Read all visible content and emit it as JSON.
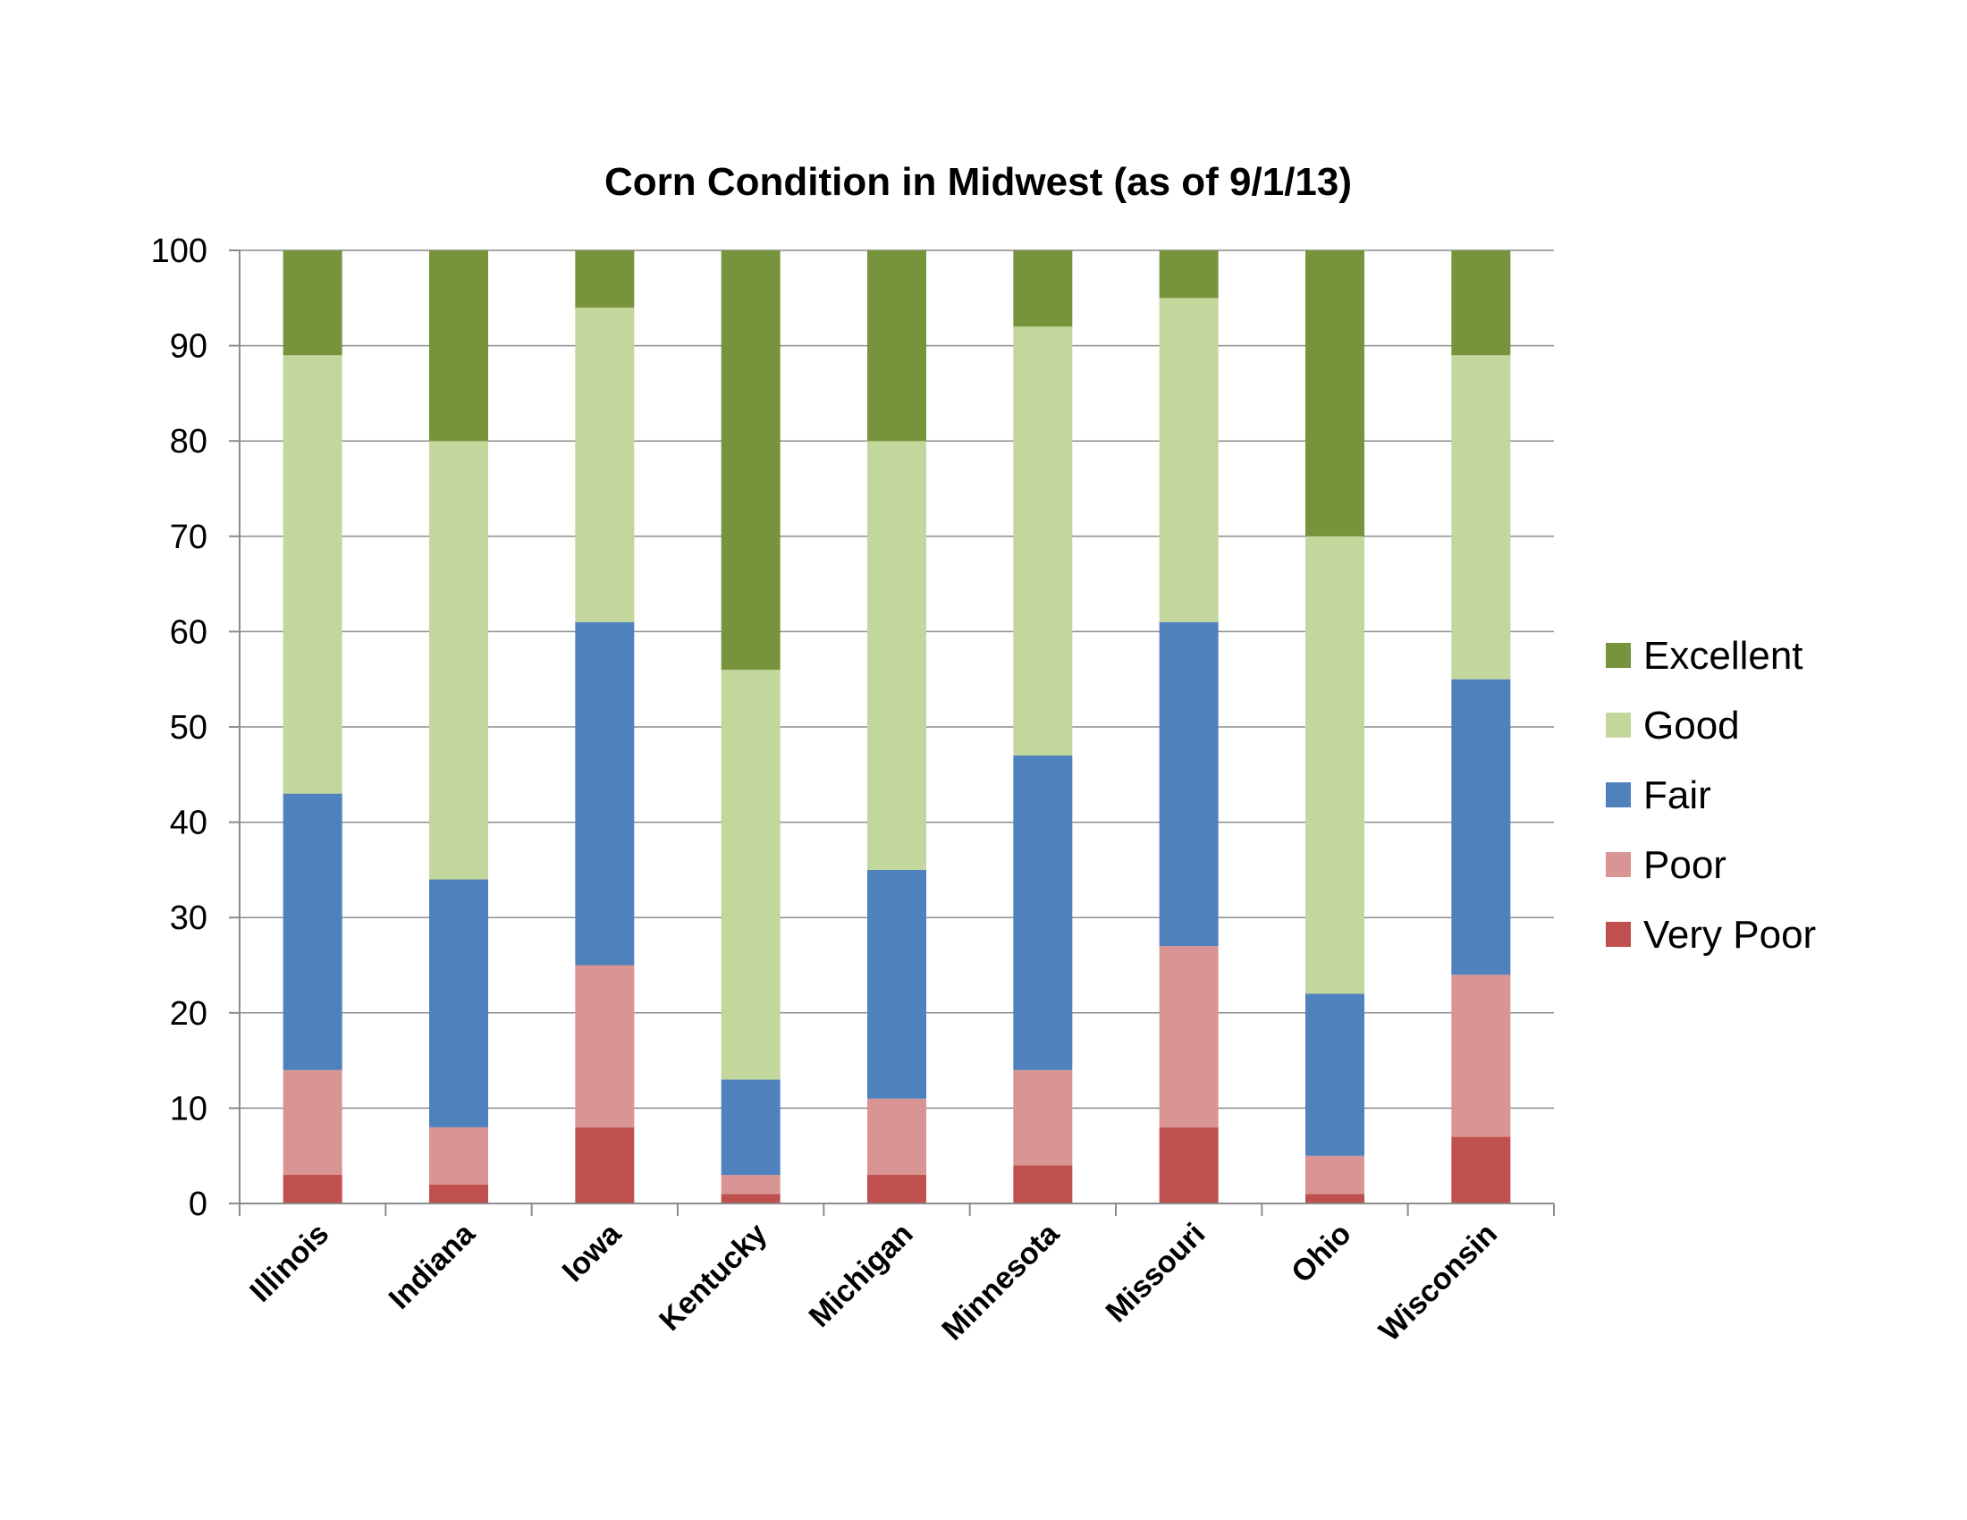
{
  "chart_data": {
    "type": "bar",
    "stacked": true,
    "title": "Corn Condition in Midwest (as of 9/1/13)",
    "xlabel": "",
    "ylabel": "",
    "ylim": [
      0,
      100
    ],
    "yticks": [
      "0",
      "10",
      "20",
      "30",
      "40",
      "50",
      "60",
      "70",
      "80",
      "90",
      "100"
    ],
    "grid": true,
    "legend_position": "right",
    "categories": [
      "Illinois",
      "Indiana",
      "Iowa",
      "Kentucky",
      "Michigan",
      "Minnesota",
      "Missouri",
      "Ohio",
      "Wisconsin"
    ],
    "series": [
      {
        "name": "Very Poor",
        "color": "#c0504d",
        "values": [
          3,
          2,
          8,
          1,
          3,
          4,
          8,
          1,
          7
        ]
      },
      {
        "name": "Poor",
        "color": "#d99594",
        "values": [
          11,
          6,
          17,
          2,
          8,
          10,
          19,
          4,
          17
        ]
      },
      {
        "name": "Fair",
        "color": "#4f81bd",
        "values": [
          29,
          26,
          36,
          10,
          24,
          33,
          34,
          17,
          31
        ]
      },
      {
        "name": "Good",
        "color": "#c3d69b",
        "values": [
          46,
          46,
          33,
          43,
          45,
          45,
          34,
          48,
          34
        ]
      },
      {
        "name": "Excellent",
        "color": "#77933c",
        "values": [
          11,
          20,
          6,
          44,
          20,
          8,
          5,
          30,
          11
        ]
      }
    ],
    "legend_order": [
      "Excellent",
      "Good",
      "Fair",
      "Poor",
      "Very Poor"
    ]
  }
}
